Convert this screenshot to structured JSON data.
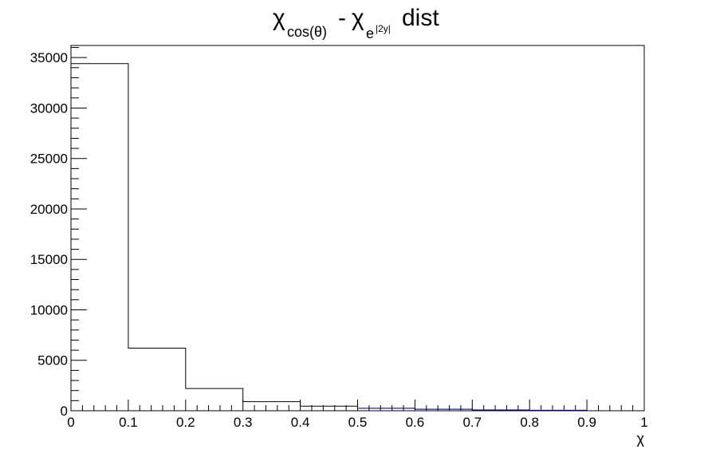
{
  "chart_data": {
    "type": "bar",
    "title": {
      "greek": "χ",
      "sub1": "cos(θ)",
      "minus": "-",
      "greek2": "χ",
      "sub2_base": "e",
      "sub2_exp": "|2y|",
      "suffix": "dist"
    },
    "xlabel": "χ",
    "ylabel": "",
    "xlim": [
      0,
      1
    ],
    "ylim": [
      0,
      36200
    ],
    "bin_edges": [
      0,
      0.1,
      0.2,
      0.3,
      0.4,
      0.5,
      0.6,
      0.7,
      0.8,
      0.9
    ],
    "bin_width": 0.1,
    "values": [
      34400,
      6200,
      2200,
      900,
      450,
      250,
      150,
      80,
      50
    ],
    "x_ticks": [
      "0",
      "0.1",
      "0.2",
      "0.3",
      "0.4",
      "0.5",
      "0.6",
      "0.7",
      "0.8",
      "0.9",
      "1"
    ],
    "y_ticks": [
      "0",
      "5000",
      "10000",
      "15000",
      "20000",
      "25000",
      "30000",
      "35000"
    ],
    "y_tick_values": [
      0,
      5000,
      10000,
      15000,
      20000,
      25000,
      30000,
      35000
    ],
    "x_tick_values": [
      0,
      0.1,
      0.2,
      0.3,
      0.4,
      0.5,
      0.6,
      0.7,
      0.8,
      0.9,
      1
    ],
    "line_color": "#000000",
    "tail_color": "#000080",
    "grid": false,
    "legend": "none"
  }
}
